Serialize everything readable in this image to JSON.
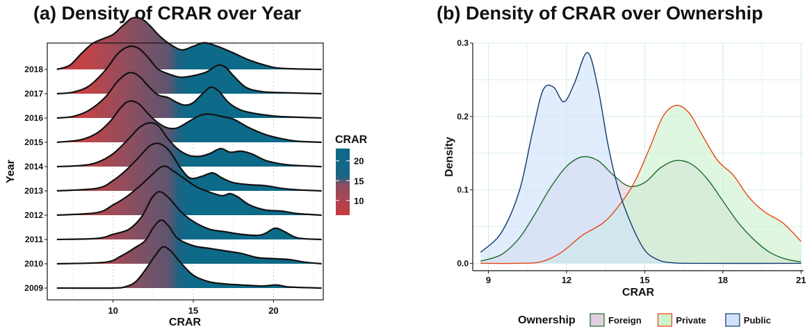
{
  "chart_data": [
    {
      "type": "ridgeline",
      "title": "(a) Density of CRAR over Year",
      "xlabel": "CRAR",
      "ylabel": "Year",
      "xlim": [
        5.9,
        23.1
      ],
      "xticks": [
        10,
        15,
        20
      ],
      "grid": "vertical dotted",
      "categories": [
        "2009",
        "2010",
        "2011",
        "2012",
        "2013",
        "2014",
        "2015",
        "2016",
        "2017",
        "2018"
      ],
      "series": [
        {
          "category": "2009",
          "x": [
            6.5,
            10,
            10.8,
            11.4,
            12,
            12.6,
            13.1,
            13.6,
            14.2,
            15,
            16,
            17,
            18,
            19.3,
            20.2,
            21,
            23
          ],
          "y": [
            0,
            0,
            0.03,
            0.12,
            0.35,
            0.62,
            0.8,
            0.72,
            0.5,
            0.25,
            0.12,
            0.08,
            0.06,
            0.04,
            0.06,
            0.02,
            0
          ]
        },
        {
          "category": "2010",
          "x": [
            6.5,
            9.5,
            10.5,
            11.3,
            12,
            12.5,
            13,
            13.5,
            14,
            15,
            16,
            17,
            18,
            19,
            20,
            21,
            22,
            23
          ],
          "y": [
            0,
            0.03,
            0.15,
            0.3,
            0.45,
            0.7,
            0.85,
            0.72,
            0.5,
            0.35,
            0.3,
            0.25,
            0.2,
            0.12,
            0.1,
            0.08,
            0.03,
            0
          ]
        },
        {
          "category": "2011",
          "x": [
            6.5,
            9,
            10,
            11,
            11.8,
            12.4,
            12.9,
            13.5,
            14.2,
            15,
            16,
            17,
            18,
            19,
            19.5,
            20.1,
            20.7,
            21.5,
            23
          ],
          "y": [
            0,
            0.02,
            0.1,
            0.2,
            0.45,
            0.8,
            0.93,
            0.8,
            0.55,
            0.35,
            0.2,
            0.15,
            0.1,
            0.08,
            0.12,
            0.22,
            0.15,
            0.03,
            0
          ]
        },
        {
          "category": "2012",
          "x": [
            6.5,
            9,
            10,
            10.8,
            11.6,
            12.3,
            12.9,
            13.3,
            13.8,
            14.5,
            15.2,
            16,
            16.8,
            17.3,
            17.8,
            18.5,
            19.5,
            20.5,
            21.5,
            23
          ],
          "y": [
            0,
            0.05,
            0.2,
            0.35,
            0.55,
            0.75,
            0.92,
            0.95,
            0.85,
            0.7,
            0.55,
            0.45,
            0.38,
            0.42,
            0.35,
            0.2,
            0.1,
            0.08,
            0.03,
            0
          ]
        },
        {
          "category": "2013",
          "x": [
            6.5,
            9,
            10,
            10.8,
            11.6,
            12.3,
            12.9,
            13.5,
            14.2,
            14.8,
            15.5,
            16.2,
            16.8,
            17.5,
            18.5,
            19.5,
            20.5,
            21.5,
            23
          ],
          "y": [
            0,
            0.05,
            0.2,
            0.4,
            0.65,
            0.88,
            0.92,
            0.78,
            0.45,
            0.25,
            0.28,
            0.35,
            0.25,
            0.16,
            0.12,
            0.1,
            0.05,
            0.02,
            0
          ]
        },
        {
          "category": "2014",
          "x": [
            6.5,
            8,
            9,
            10,
            11,
            11.6,
            12.2,
            12.8,
            13.4,
            14,
            14.7,
            15.4,
            16,
            16.7,
            17.3,
            18,
            18.7,
            19.5,
            20.5,
            21.5,
            23
          ],
          "y": [
            0,
            0.02,
            0.08,
            0.25,
            0.55,
            0.75,
            0.85,
            0.8,
            0.55,
            0.35,
            0.22,
            0.2,
            0.25,
            0.35,
            0.28,
            0.3,
            0.24,
            0.12,
            0.05,
            0.02,
            0
          ]
        },
        {
          "category": "2015",
          "x": [
            6.5,
            8,
            9,
            9.8,
            10.5,
            11,
            11.6,
            12.2,
            12.8,
            13.4,
            14,
            14.7,
            15.4,
            16,
            16.8,
            17.5,
            18.5,
            19.5,
            20.5,
            21.5,
            23
          ],
          "y": [
            0,
            0.05,
            0.18,
            0.4,
            0.68,
            0.8,
            0.75,
            0.55,
            0.38,
            0.28,
            0.28,
            0.4,
            0.52,
            0.55,
            0.5,
            0.45,
            0.28,
            0.15,
            0.07,
            0.02,
            0
          ]
        },
        {
          "category": "2016",
          "x": [
            6.5,
            7.5,
            8.5,
            9.5,
            10.3,
            11,
            11.6,
            12.2,
            12.8,
            13.4,
            14,
            14.5,
            15,
            15.6,
            16.1,
            16.6,
            17.2,
            18,
            19,
            20,
            21,
            23
          ],
          "y": [
            0,
            0.03,
            0.15,
            0.4,
            0.72,
            0.88,
            0.82,
            0.62,
            0.45,
            0.4,
            0.3,
            0.25,
            0.3,
            0.48,
            0.6,
            0.52,
            0.3,
            0.15,
            0.08,
            0.04,
            0.02,
            0
          ]
        },
        {
          "category": "2017",
          "x": [
            6.5,
            7.5,
            8.5,
            9.5,
            10.3,
            11,
            11.6,
            12.2,
            12.8,
            13.5,
            14.2,
            15,
            15.8,
            16.5,
            17,
            17.5,
            18.3,
            19.3,
            20.5,
            23
          ],
          "y": [
            0,
            0.03,
            0.15,
            0.45,
            0.78,
            0.92,
            0.88,
            0.7,
            0.48,
            0.38,
            0.32,
            0.35,
            0.42,
            0.55,
            0.52,
            0.35,
            0.12,
            0.04,
            0.02,
            0
          ]
        },
        {
          "category": "2018",
          "x": [
            6.5,
            7.3,
            8,
            8.7,
            9.4,
            10,
            10.6,
            11.2,
            11.8,
            12.3,
            12.9,
            13.6,
            14.3,
            15,
            15.7,
            16.5,
            17.5,
            18.5,
            19.5,
            20.5,
            23
          ],
          "y": [
            0,
            0.08,
            0.3,
            0.5,
            0.6,
            0.68,
            0.85,
            1.0,
            0.98,
            0.85,
            0.65,
            0.48,
            0.38,
            0.45,
            0.52,
            0.45,
            0.32,
            0.18,
            0.08,
            0.02,
            0
          ]
        }
      ],
      "fill_gradient": {
        "name": "CRAR",
        "breaks": [
          10,
          15,
          20
        ],
        "low_color": "#C8393F",
        "high_color": "#0D6A88"
      }
    },
    {
      "type": "area",
      "title": "(b) Density of CRAR over Ownership",
      "xlabel": "CRAR",
      "ylabel": "Density",
      "xlim": [
        8.4,
        21.1
      ],
      "ylim": [
        -0.01,
        0.3
      ],
      "xticks": [
        9,
        12,
        15,
        18,
        21
      ],
      "yticks": [
        0.0,
        0.1,
        0.2,
        0.3
      ],
      "grid": "on",
      "legend": {
        "title": "Ownership",
        "position": "bottom"
      },
      "series": [
        {
          "name": "Foreign",
          "color": "#1B6B28",
          "fill": "#E2D0E0",
          "x": [
            8.7,
            9.5,
            10.2,
            10.8,
            11.4,
            12,
            12.6,
            13.2,
            13.8,
            14.4,
            15,
            15.6,
            16.2,
            16.8,
            17.4,
            18,
            18.6,
            19.2,
            19.8,
            20.4,
            21
          ],
          "y": [
            0.003,
            0.012,
            0.035,
            0.068,
            0.104,
            0.132,
            0.145,
            0.14,
            0.12,
            0.105,
            0.11,
            0.13,
            0.14,
            0.135,
            0.115,
            0.085,
            0.055,
            0.032,
            0.015,
            0.006,
            0.002
          ]
        },
        {
          "name": "Private",
          "color": "#E8430F",
          "fill": "#CCF2CF",
          "x": [
            8.7,
            10,
            11,
            11.8,
            12.6,
            13.4,
            14,
            14.6,
            15.2,
            15.7,
            16.2,
            16.7,
            17.2,
            17.8,
            18.4,
            19,
            19.6,
            20.3,
            21
          ],
          "y": [
            0,
            0,
            0.002,
            0.015,
            0.038,
            0.055,
            0.078,
            0.11,
            0.158,
            0.2,
            0.215,
            0.205,
            0.175,
            0.14,
            0.12,
            0.09,
            0.07,
            0.055,
            0.03
          ]
        },
        {
          "name": "Public",
          "color": "#10386B",
          "fill": "#CFE2FA",
          "x": [
            8.7,
            9.5,
            10.2,
            10.7,
            11.1,
            11.5,
            11.9,
            12.3,
            12.8,
            13.2,
            13.6,
            14,
            14.5,
            15,
            15.5,
            16,
            17,
            21
          ],
          "y": [
            0.015,
            0.042,
            0.1,
            0.18,
            0.236,
            0.24,
            0.22,
            0.245,
            0.287,
            0.24,
            0.16,
            0.1,
            0.052,
            0.018,
            0.005,
            0.001,
            0,
            0
          ]
        }
      ]
    }
  ]
}
